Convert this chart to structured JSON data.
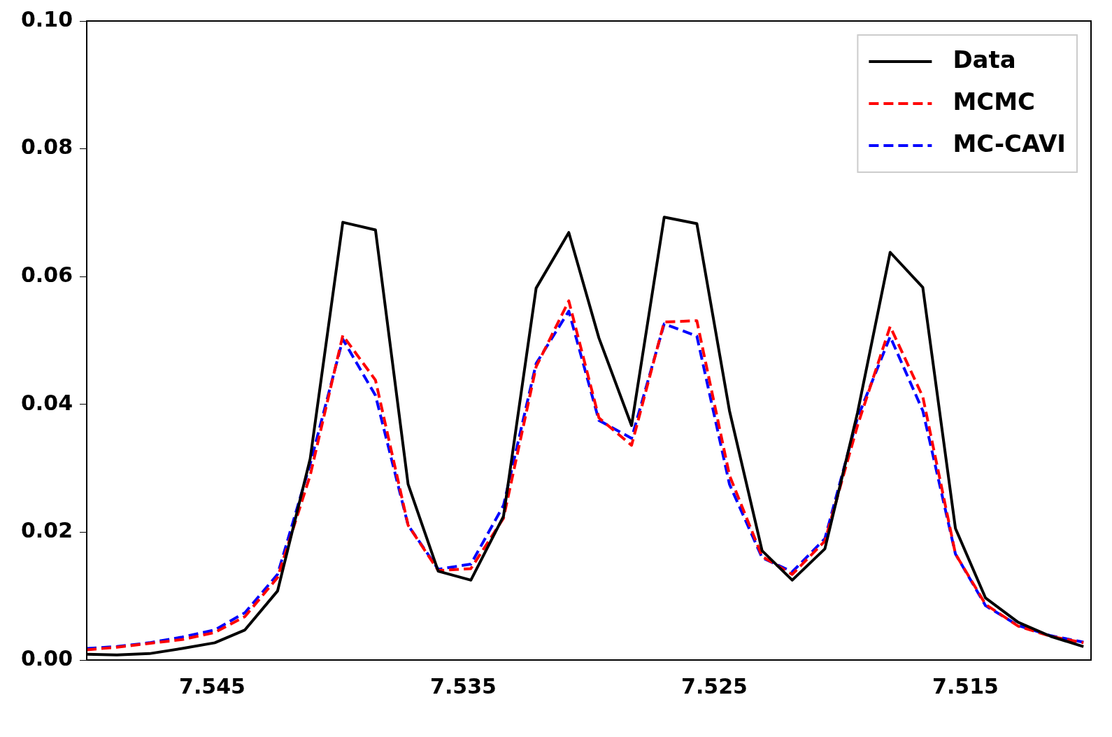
{
  "chart_data": {
    "type": "line",
    "legend": "top right",
    "grid": false,
    "marker": "none",
    "x": [
      7.55,
      7.5488,
      7.5475,
      7.5462,
      7.5449,
      7.5437,
      7.5424,
      7.5411,
      7.5398,
      7.5385,
      7.5372,
      7.536,
      7.5347,
      7.5334,
      7.5321,
      7.5308,
      7.5296,
      7.5283,
      7.527,
      7.5257,
      7.5244,
      7.5231,
      7.5219,
      7.5206,
      7.5193,
      7.518,
      7.5167,
      7.5154,
      7.5142,
      7.5129,
      7.5116,
      7.5103
    ],
    "xlim": [
      7.55,
      7.51
    ],
    "xticks": [
      7.545,
      7.535,
      7.525,
      7.515
    ],
    "ylim": [
      0,
      0.1
    ],
    "yticks": [
      {
        "value": 0,
        "label": "0.00"
      },
      {
        "value": 0.02,
        "label": "0.02"
      },
      {
        "value": 0.04,
        "label": "0.04"
      },
      {
        "value": 0.06,
        "label": "0.06"
      },
      {
        "value": 0.08,
        "label": "0.08"
      },
      {
        "value": 0.1,
        "label": "0.10"
      }
    ],
    "series": [
      {
        "name": "Data",
        "color": "#000000",
        "line_style": "solid",
        "values": [
          0.0009,
          0.0008,
          0.001,
          0.0018,
          0.0027,
          0.0047,
          0.0108,
          0.0315,
          0.0685,
          0.0673,
          0.0275,
          0.0139,
          0.0125,
          0.0225,
          0.0582,
          0.0669,
          0.0504,
          0.0367,
          0.0693,
          0.0683,
          0.039,
          0.0171,
          0.0125,
          0.0174,
          0.0387,
          0.0638,
          0.0583,
          0.0206,
          0.0097,
          0.0059,
          0.0037,
          0.0021
        ]
      },
      {
        "name": "MCMC",
        "color": "#ff0000",
        "line_style": "dashed",
        "values": [
          0.0016,
          0.002,
          0.0026,
          0.0032,
          0.0043,
          0.0068,
          0.0129,
          0.0289,
          0.0508,
          0.0438,
          0.0211,
          0.014,
          0.0143,
          0.0222,
          0.0459,
          0.0562,
          0.0379,
          0.0336,
          0.0529,
          0.0531,
          0.0289,
          0.0162,
          0.0134,
          0.0186,
          0.0367,
          0.0522,
          0.0412,
          0.0166,
          0.0087,
          0.0053,
          0.0037,
          0.0027
        ]
      },
      {
        "name": "MC-CAVI",
        "color": "#0000ff",
        "line_style": "dashed",
        "values": [
          0.0018,
          0.0021,
          0.0027,
          0.0036,
          0.0047,
          0.0074,
          0.0134,
          0.0307,
          0.0502,
          0.0414,
          0.0211,
          0.0142,
          0.015,
          0.0242,
          0.0464,
          0.0546,
          0.0375,
          0.0347,
          0.0526,
          0.0507,
          0.0275,
          0.016,
          0.0138,
          0.019,
          0.0379,
          0.0506,
          0.039,
          0.0166,
          0.0085,
          0.0054,
          0.0038,
          0.0028
        ]
      }
    ]
  }
}
